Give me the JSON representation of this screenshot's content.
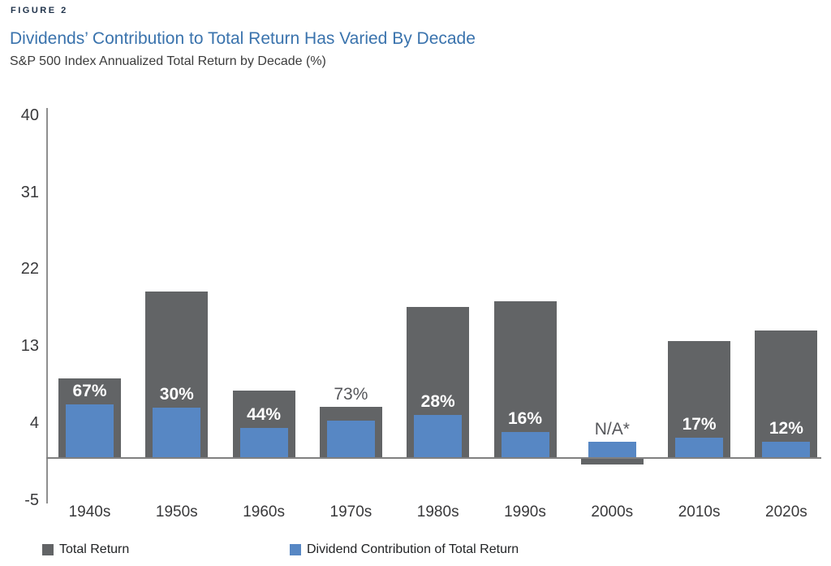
{
  "figure_label": "FIGURE 2",
  "title": "Dividends’ Contribution to Total Return Has Varied By Decade",
  "subtitle": "S&P 500 Index Annualized Total Return by Decade (%)",
  "colors": {
    "total_return_bar": "#626466",
    "dividend_bar": "#5787c4",
    "title_blue": "#3a73ad",
    "figure_label_navy": "#20334b",
    "axis_line": "#8f8f8f",
    "baseline": "#808080",
    "label_light": "#ffffff",
    "label_dark": "#55565a"
  },
  "legend": {
    "items": [
      {
        "label": "Total Return",
        "swatch": "total_return_bar"
      },
      {
        "label": "Dividend Contribution of Total Return",
        "swatch": "dividend_bar"
      }
    ]
  },
  "chart_data": {
    "type": "bar",
    "title": "Dividends’ Contribution to Total Return Has Varied By Decade",
    "subtitle": "S&P 500 Index Annualized Total Return by Decade (%)",
    "categories": [
      "1940s",
      "1950s",
      "1960s",
      "1970s",
      "1980s",
      "1990s",
      "2000s",
      "2010s",
      "2020s"
    ],
    "series": [
      {
        "name": "Total Return",
        "values": [
          9.2,
          19.4,
          7.8,
          5.9,
          17.6,
          18.2,
          -0.9,
          13.6,
          14.8
        ]
      },
      {
        "name": "Dividend Contribution of Total Return",
        "values": [
          6.2,
          5.8,
          3.4,
          4.3,
          4.9,
          2.9,
          1.8,
          2.3,
          1.8
        ]
      }
    ],
    "bar_labels": [
      "67%",
      "30%",
      "44%",
      "73%",
      "28%",
      "16%",
      "N/A*",
      "17%",
      "12%"
    ],
    "bar_label_placement": [
      "inside",
      "inside",
      "inside",
      "above",
      "inside",
      "inside",
      "above",
      "inside",
      "inside"
    ],
    "xlabel": "",
    "ylabel": "",
    "ylim": [
      -5,
      40
    ],
    "y_ticks": [
      40,
      31,
      22,
      13,
      4,
      -5
    ],
    "grid": false,
    "legend_position": "bottom-left"
  }
}
